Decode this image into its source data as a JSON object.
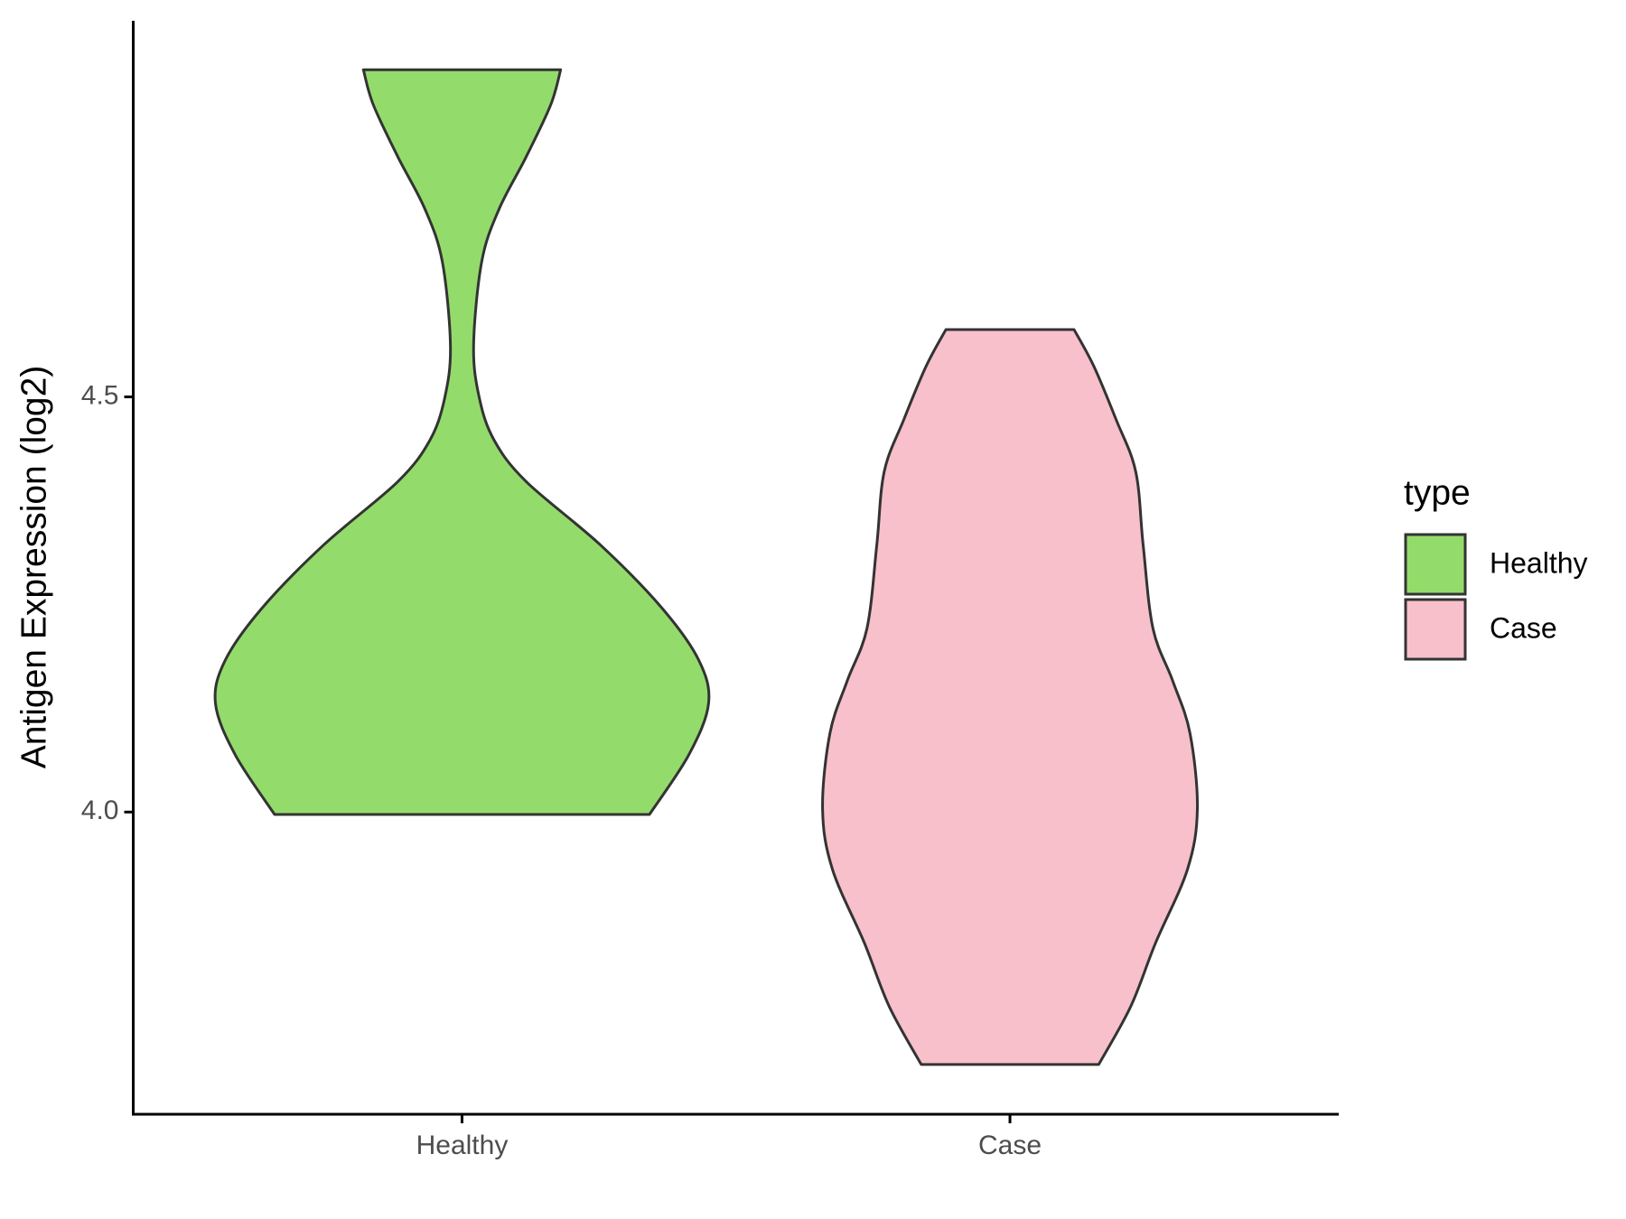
{
  "chart_data": {
    "type": "violin",
    "y_label": "Antigen Expression (log2)",
    "categories": [
      "Healthy",
      "Case"
    ],
    "legend_title": "type",
    "ylim": [
      3.636,
      4.953
    ],
    "yticks": [
      {
        "value": 4,
        "label": "4.0"
      },
      {
        "value": 4.5,
        "label": "4.5"
      }
    ],
    "grid": false,
    "legend": "right",
    "series": [
      {
        "name": "Healthy",
        "color": "#93dc6b",
        "y": [
          4.894,
          4.852,
          4.789,
          4.726,
          4.663,
          4.562,
          4.499,
          4.448,
          4.398,
          4.322,
          4.246,
          4.183,
          4.131,
          4.069,
          3.997
        ],
        "density": [
          0.4,
          0.36,
          0.26,
          0.15,
          0.08,
          0.047,
          0.07,
          0.13,
          0.26,
          0.56,
          0.81,
          0.96,
          1.0,
          0.92,
          0.76
        ]
      },
      {
        "name": "Case",
        "color": "#f7c0cb",
        "y": [
          4.581,
          4.537,
          4.473,
          4.41,
          4.322,
          4.221,
          4.158,
          4.095,
          4.004,
          3.931,
          3.842,
          3.766,
          3.696
        ],
        "density": [
          0.26,
          0.34,
          0.43,
          0.51,
          0.54,
          0.58,
          0.66,
          0.73,
          0.76,
          0.72,
          0.59,
          0.49,
          0.36
        ]
      }
    ]
  }
}
